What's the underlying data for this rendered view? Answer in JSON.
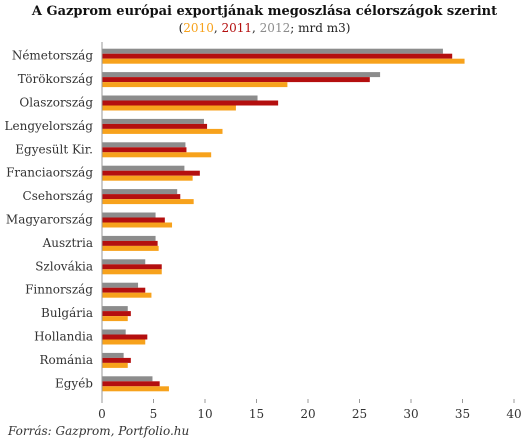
{
  "title": "A Gazprom európai exportjának megoszlása célországok szerint",
  "subtitle": {
    "open": "(",
    "y2010": "2010",
    "sep1": ", ",
    "y2011": "2011",
    "sep2": ", ",
    "y2012": "2012",
    "rest": "; mrd m3)"
  },
  "source": "Forrás: Gazprom, Portfolio.hu",
  "chart_data": {
    "type": "bar",
    "orientation": "horizontal",
    "categories": [
      "Németország",
      "Törökország",
      "Olaszország",
      "Lengyelország",
      "Egyesült Kir.",
      "Franciaország",
      "Csehország",
      "Magyarország",
      "Ausztria",
      "Szlovákia",
      "Finnország",
      "Bulgária",
      "Hollandia",
      "Románia",
      "Egyéb"
    ],
    "series": [
      {
        "name": "2010",
        "color": "#8c8c8c",
        "values": [
          33.1,
          27.0,
          15.1,
          9.9,
          8.1,
          8.0,
          7.3,
          5.2,
          5.2,
          4.2,
          3.5,
          2.5,
          2.3,
          2.1,
          4.9
        ]
      },
      {
        "name": "2011",
        "color": "#b40f0f",
        "values": [
          34.0,
          26.0,
          17.1,
          10.2,
          8.2,
          9.5,
          7.6,
          6.1,
          5.4,
          5.8,
          4.2,
          2.8,
          4.4,
          2.8,
          5.6
        ]
      },
      {
        "name": "2012",
        "color": "#f7a21c",
        "values": [
          35.2,
          18.0,
          13.0,
          11.7,
          10.6,
          8.8,
          8.9,
          6.8,
          5.5,
          5.8,
          4.8,
          2.5,
          4.2,
          2.5,
          6.5
        ]
      }
    ],
    "xlim": [
      0,
      40
    ],
    "xticks": [
      0,
      5,
      10,
      15,
      20,
      25,
      30,
      35,
      40
    ],
    "grid": false,
    "legend": "none"
  }
}
